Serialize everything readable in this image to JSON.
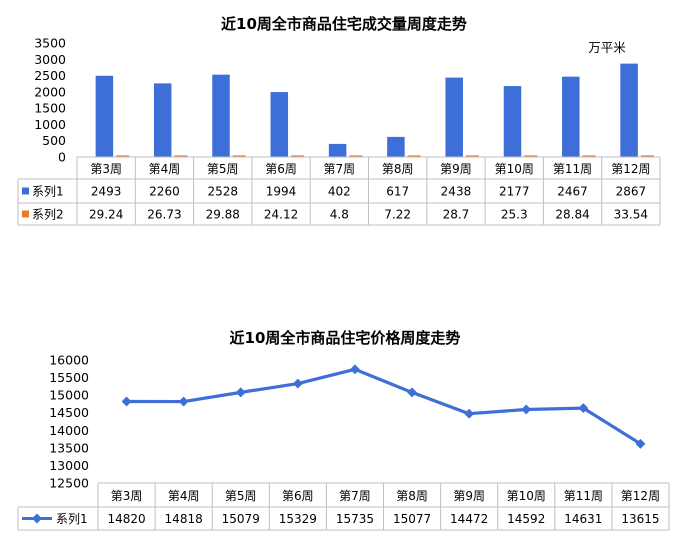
{
  "chart_data": [
    {
      "type": "bar",
      "title": "近10周全市商品住宅成交量周度走势",
      "unit": "万平米",
      "categories": [
        "第3周",
        "第4周",
        "第5周",
        "第6周",
        "第7周",
        "第8周",
        "第9周",
        "第10周",
        "第11周",
        "第12周"
      ],
      "series": [
        {
          "name": "系列1",
          "values": [
            2493,
            2260,
            2528,
            1994,
            402,
            617,
            2438,
            2177,
            2467,
            2867
          ],
          "color": "#3e6fd8"
        },
        {
          "name": "系列2",
          "values": [
            29.24,
            26.73,
            29.88,
            24.12,
            4.8,
            7.22,
            28.7,
            25.3,
            28.84,
            33.54
          ],
          "color": "#f0782a"
        }
      ],
      "yticks": [
        "0",
        "500",
        "1000",
        "1500",
        "2000",
        "2500",
        "3000",
        "3500"
      ],
      "ylim": [
        0,
        3500
      ],
      "grid": false,
      "legend": "data-table"
    },
    {
      "type": "line",
      "title": "近10周全市商品住宅价格周度走势",
      "categories": [
        "第3周",
        "第4周",
        "第5周",
        "第6周",
        "第7周",
        "第8周",
        "第9周",
        "第10周",
        "第11周",
        "第12周"
      ],
      "series": [
        {
          "name": "系列1",
          "values": [
            14820,
            14818,
            15079,
            15329,
            15735,
            15077,
            14472,
            14592,
            14631,
            13615
          ],
          "color": "#3e6fd8"
        }
      ],
      "yticks": [
        "12500",
        "13000",
        "13500",
        "14000",
        "14500",
        "15000",
        "15500",
        "16000"
      ],
      "ylim": [
        12500,
        16000
      ],
      "grid": false,
      "legend": "data-table"
    }
  ]
}
